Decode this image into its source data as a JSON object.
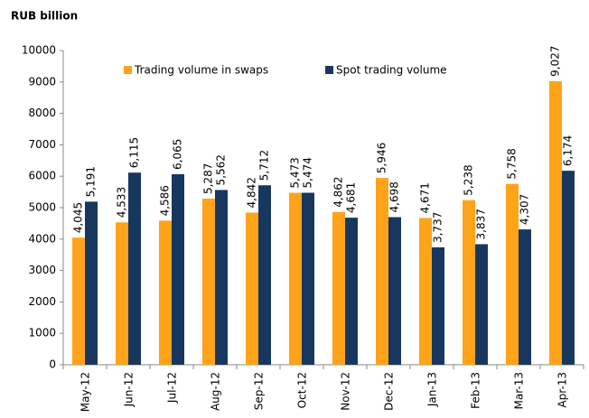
{
  "chart_data": {
    "type": "bar",
    "y_axis_label": "RUB billion",
    "categories": [
      "May-12",
      "Jun-12",
      "Jul-12",
      "Aug-12",
      "Sep-12",
      "Oct-12",
      "Nov-12",
      "Dec-12",
      "Jan-13",
      "Feb-13",
      "Mar-13",
      "Apr-13"
    ],
    "series": [
      {
        "name": "Trading volume in swaps",
        "color": "#ffa31a",
        "values": [
          4045,
          4533,
          4586,
          5287,
          4842,
          5473,
          4862,
          5946,
          4671,
          5238,
          5758,
          9027
        ],
        "value_labels": [
          "4,045",
          "4,533",
          "4,586",
          "5,287",
          "4,842",
          "5,473",
          "4,862",
          "5,946",
          "4,671",
          "5,238",
          "5,758",
          "9,027"
        ]
      },
      {
        "name": "Spot trading volume",
        "color": "#17375e",
        "values": [
          5191,
          6115,
          6065,
          5562,
          5712,
          5474,
          4681,
          4698,
          3737,
          3837,
          4307,
          6174
        ],
        "value_labels": [
          "5,191",
          "6,115",
          "6,065",
          "5,562",
          "5,712",
          "5,474",
          "4,681",
          "4,698",
          "3,737",
          "3,837",
          "4,307",
          "6,174"
        ]
      }
    ],
    "ylim": [
      0,
      10000
    ],
    "yticks": [
      0,
      1000,
      2000,
      3000,
      4000,
      5000,
      6000,
      7000,
      8000,
      9000,
      10000
    ],
    "grid": false,
    "legend": "top"
  }
}
